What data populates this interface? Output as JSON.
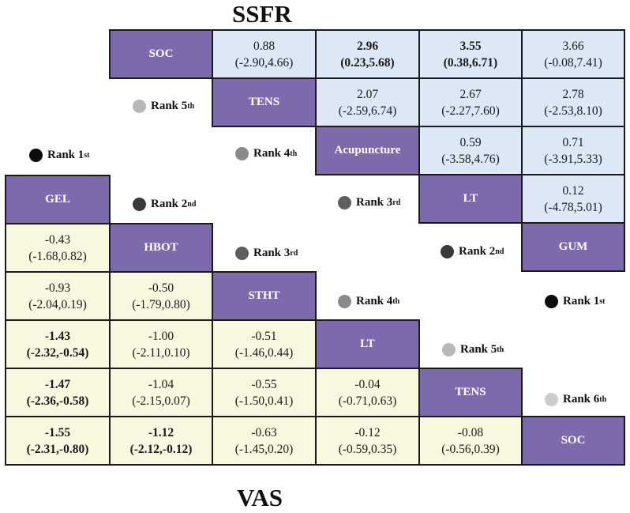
{
  "titles": {
    "top": "SSFR",
    "bottom": "VAS"
  },
  "colors": {
    "diagonal": "#7d6aad",
    "upper": "#dce8f5",
    "lower": "#f8f8e0"
  },
  "ssfr": {
    "row1": {
      "label": "SOC",
      "c1a": "0.88",
      "c1b": "(-2.90,4.66)",
      "c2a": "2.96",
      "c2b": "(0.23,5.68)",
      "c3a": "3.55",
      "c3b": "(0.38,6.71)",
      "c4a": "3.66",
      "c4b": "(-0.08,7.41)"
    },
    "row2": {
      "label": "TENS",
      "c1a": "2.07",
      "c1b": "(-2.59,6.74)",
      "c2a": "2.67",
      "c2b": "(-2.27,7.60)",
      "c3a": "2.78",
      "c3b": "(-2.53,8.10)"
    },
    "row3": {
      "label": "Acupuncture",
      "c1a": "0.59",
      "c1b": "(-3.58,4.76)",
      "c2a": "0.71",
      "c2b": "(-3.91,5.33)"
    },
    "row4": {
      "label": "LT",
      "c1a": "0.12",
      "c1b": "(-4.78,5.01)"
    },
    "row5": {
      "label": "GUM"
    },
    "ranks": {
      "r5": {
        "text": "Rank 5",
        "suf": "th"
      },
      "r4": {
        "text": "Rank 4",
        "suf": "th"
      },
      "r3": {
        "text": "Rank 3",
        "suf": "rd"
      },
      "r2": {
        "text": "Rank 2",
        "suf": "nd"
      },
      "r1": {
        "text": "Rank 1",
        "suf": "st"
      }
    }
  },
  "vas": {
    "d1": "GEL",
    "d2": "HBOT",
    "d3": "STHT",
    "d4": "LT",
    "d5": "TENS",
    "d6": "SOC",
    "r2": {
      "c1a": "-0.43",
      "c1b": "(-1.68,0.82)"
    },
    "r3": {
      "c1a": "-0.93",
      "c1b": "(-2.04,0.19)",
      "c2a": "-0.50",
      "c2b": "(-1.79,0.80)"
    },
    "r4": {
      "c1a": "-1.43",
      "c1b": "(-2.32,-0.54)",
      "c2a": "-1.00",
      "c2b": "(-2.11,0.10)",
      "c3a": "-0.51",
      "c3b": "(-1.46,0.44)"
    },
    "r5": {
      "c1a": "-1.47",
      "c1b": "(-2.36,-0.58)",
      "c2a": "-1.04",
      "c2b": "(-2.15,0.07)",
      "c3a": "-0.55",
      "c3b": "(-1.50,0.41)",
      "c4a": "-0.04",
      "c4b": "(-0.71,0.63)"
    },
    "r6": {
      "c1a": "-1.55",
      "c1b": "(-2.31,-0.80)",
      "c2a": "-1.12",
      "c2b": "(-2.12,-0.12)",
      "c3a": "-0.63",
      "c3b": "(-1.45,0.20)",
      "c4a": "-0.12",
      "c4b": "(-0.59,0.35)",
      "c5a": "-0.08",
      "c5b": "(-0.56,0.39)"
    },
    "ranks": {
      "r1": {
        "text": "Rank 1",
        "suf": "st"
      },
      "r2": {
        "text": "Rank 2",
        "suf": "nd"
      },
      "r3": {
        "text": "Rank 3",
        "suf": "rd"
      },
      "r4": {
        "text": "Rank 4",
        "suf": "th"
      },
      "r5": {
        "text": "Rank 5",
        "suf": "th"
      },
      "r6": {
        "text": "Rank 6",
        "suf": "th"
      }
    }
  }
}
